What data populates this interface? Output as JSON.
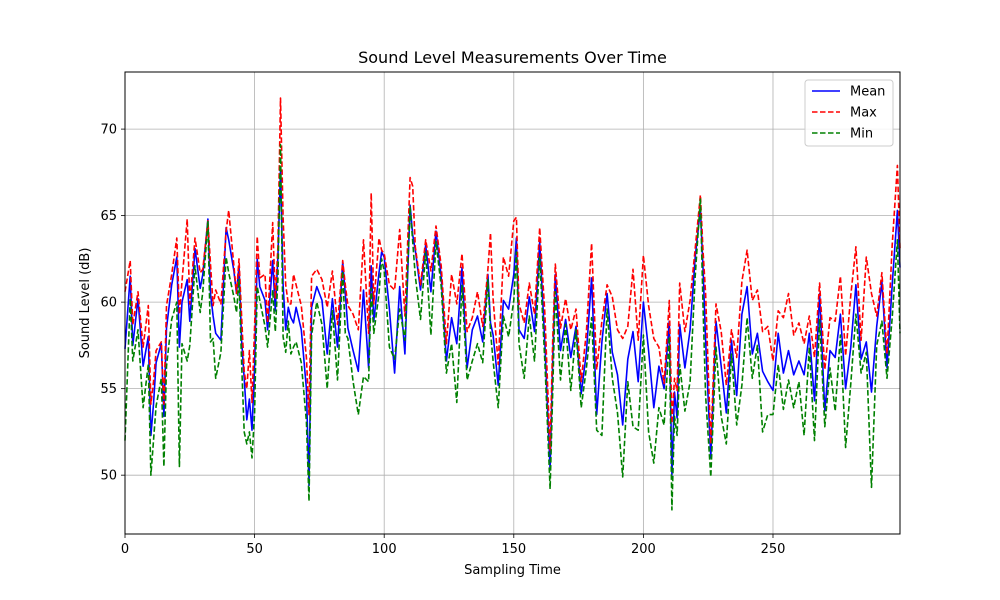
{
  "chart_data": {
    "type": "line",
    "title": "Sound Level Measurements Over Time",
    "xlabel": "Sampling Time",
    "ylabel": "Sound Level (dB)",
    "xlim": [
      0,
      299
    ],
    "ylim": [
      46.6,
      73.3
    ],
    "xticks": [
      0,
      50,
      100,
      150,
      200,
      250
    ],
    "yticks": [
      50,
      55,
      60,
      65,
      70
    ],
    "grid": true,
    "legend_position": "top-right",
    "x": [
      0,
      2,
      3,
      5,
      7,
      9,
      10,
      11,
      12,
      14,
      15,
      16,
      18,
      20,
      21,
      22,
      24,
      25,
      27,
      29,
      30,
      32,
      33,
      34,
      35,
      37,
      39,
      40,
      42,
      43,
      44,
      45,
      46,
      47,
      48,
      49,
      50,
      51,
      52,
      54,
      55,
      57,
      58,
      59,
      60,
      61,
      62,
      63,
      64,
      65,
      66,
      68,
      70,
      71,
      72,
      74,
      76,
      78,
      80,
      82,
      84,
      85,
      86,
      88,
      90,
      92,
      94,
      95,
      96,
      98,
      99,
      100,
      102,
      104,
      106,
      108,
      110,
      111,
      112,
      114,
      116,
      118,
      120,
      122,
      124,
      126,
      128,
      130,
      132,
      134,
      136,
      138,
      140,
      141,
      142,
      144,
      146,
      148,
      150,
      151,
      152,
      154,
      156,
      158,
      160,
      162,
      164,
      165,
      166,
      168,
      170,
      172,
      174,
      176,
      178,
      180,
      182,
      184,
      186,
      188,
      190,
      192,
      194,
      196,
      198,
      200,
      202,
      204,
      206,
      208,
      210,
      211,
      212,
      213,
      214,
      216,
      218,
      220,
      222,
      223,
      224,
      226,
      228,
      230,
      232,
      234,
      236,
      238,
      240,
      242,
      244,
      246,
      248,
      250,
      252,
      254,
      256,
      258,
      260,
      262,
      264,
      266,
      268,
      270,
      272,
      274,
      276,
      278,
      280,
      282,
      284,
      286,
      288,
      290,
      292,
      294,
      296,
      298,
      299
    ],
    "series": [
      {
        "name": "Mean",
        "color": "#0000ff",
        "dash": "solid",
        "values": [
          57.3,
          61.5,
          57.5,
          60.2,
          56.3,
          58.0,
          52.3,
          54.1,
          56.5,
          57.6,
          53.4,
          58.5,
          61.0,
          62.6,
          57.4,
          60.0,
          61.3,
          58.9,
          63.1,
          60.8,
          61.6,
          64.8,
          60.5,
          59.2,
          58.2,
          57.8,
          64.3,
          63.6,
          61.8,
          60.5,
          62.1,
          57.8,
          55.6,
          53.2,
          54.4,
          52.6,
          56.3,
          62.5,
          60.9,
          60.1,
          58.4,
          62.4,
          59.5,
          62.6,
          67.7,
          61.0,
          58.4,
          59.7,
          59.1,
          58.8,
          59.7,
          58.4,
          55.0,
          49.4,
          59.7,
          60.9,
          60.1,
          57.0,
          60.2,
          57.4,
          62.3,
          60.5,
          58.5,
          57.2,
          56.0,
          60.7,
          56.2,
          62.1,
          58.9,
          61.7,
          62.9,
          62.6,
          59.6,
          55.9,
          60.9,
          57.0,
          65.6,
          63.9,
          63.0,
          60.7,
          63.3,
          60.6,
          64.1,
          61.5,
          56.6,
          59.1,
          57.6,
          62.0,
          56.2,
          58.4,
          59.2,
          57.7,
          61.6,
          58.8,
          58.1,
          55.2,
          60.1,
          59.6,
          61.6,
          63.7,
          58.4,
          57.9,
          60.3,
          58.3,
          63.5,
          57.6,
          50.3,
          56.6,
          61.6,
          57.2,
          59.0,
          56.8,
          58.6,
          54.7,
          57.1,
          61.4,
          53.5,
          57.7,
          60.5,
          57.1,
          55.8,
          52.9,
          56.7,
          58.3,
          55.4,
          60.0,
          57.2,
          53.9,
          56.3,
          55.0,
          58.9,
          50.0,
          54.8,
          53.3,
          58.7,
          56.2,
          58.4,
          62.6,
          65.4,
          62.0,
          57.8,
          51.0,
          58.9,
          56.3,
          53.6,
          57.8,
          54.6,
          59.3,
          60.9,
          57.0,
          58.2,
          56.0,
          55.4,
          54.9,
          58.2,
          55.9,
          57.2,
          55.8,
          56.6,
          55.8,
          58.2,
          54.3,
          60.5,
          53.7,
          57.2,
          56.8,
          59.3,
          55.0,
          57.4,
          61.0,
          56.7,
          57.7,
          54.8,
          58.6,
          61.2,
          56.2,
          61.0,
          65.3,
          62.0
        ]
      },
      {
        "name": "Max",
        "color": "#ff0000",
        "dash": "dashed",
        "values": [
          60.6,
          62.4,
          58.7,
          60.6,
          57.4,
          59.8,
          54.1,
          55.4,
          57.2,
          57.7,
          54.1,
          59.8,
          61.6,
          63.7,
          59.3,
          61.2,
          64.8,
          59.9,
          63.7,
          61.7,
          61.9,
          64.7,
          62.2,
          59.8,
          60.7,
          59.9,
          64.1,
          65.3,
          62.1,
          60.5,
          62.5,
          59.2,
          56.0,
          55.0,
          57.2,
          54.2,
          58.6,
          63.8,
          61.4,
          61.6,
          58.8,
          64.6,
          60.2,
          63.2,
          71.8,
          64.9,
          61.0,
          59.9,
          59.9,
          61.6,
          61.0,
          59.8,
          56.8,
          53.5,
          61.5,
          61.9,
          61.3,
          59.7,
          61.8,
          58.7,
          62.4,
          61.0,
          59.8,
          59.3,
          58.4,
          63.6,
          58.2,
          66.3,
          59.9,
          63.7,
          63.0,
          62.8,
          61.0,
          60.7,
          64.2,
          59.2,
          67.2,
          66.7,
          63.2,
          61.0,
          63.6,
          61.8,
          64.4,
          62.1,
          57.6,
          61.6,
          59.9,
          62.8,
          58.3,
          59.1,
          60.6,
          58.6,
          61.9,
          64.0,
          60.2,
          56.4,
          62.6,
          61.5,
          64.7,
          64.9,
          59.9,
          58.8,
          61.1,
          59.3,
          64.3,
          59.3,
          51.4,
          57.8,
          62.2,
          58.5,
          60.2,
          58.4,
          59.6,
          55.4,
          58.3,
          63.4,
          56.1,
          58.9,
          61.0,
          60.3,
          58.4,
          57.9,
          58.6,
          61.9,
          57.8,
          62.7,
          59.8,
          57.9,
          57.4,
          55.3,
          60.1,
          53.0,
          55.6,
          54.9,
          61.1,
          58.3,
          60.1,
          63.1,
          66.2,
          63.0,
          60.5,
          51.8,
          59.9,
          58.3,
          55.2,
          58.4,
          56.8,
          61.2,
          63.0,
          60.1,
          60.7,
          58.3,
          58.6,
          56.6,
          59.5,
          59.1,
          60.5,
          58.1,
          58.8,
          57.6,
          59.2,
          56.8,
          61.1,
          56.1,
          59.1,
          58.9,
          61.5,
          56.9,
          60.4,
          63.2,
          57.8,
          62.6,
          60.5,
          59.2,
          61.7,
          57.0,
          63.3,
          67.9,
          63.1
        ]
      },
      {
        "name": "Min",
        "color": "#008000",
        "dash": "dashed",
        "values": [
          52.0,
          60.2,
          56.6,
          58.4,
          53.9,
          56.4,
          50.0,
          52.0,
          54.0,
          55.6,
          50.5,
          56.3,
          59.0,
          60.0,
          50.5,
          57.6,
          56.6,
          57.5,
          62.1,
          59.4,
          60.6,
          64.7,
          57.7,
          57.9,
          55.6,
          57.1,
          62.6,
          61.7,
          60.3,
          59.4,
          61.3,
          56.5,
          52.5,
          51.8,
          52.5,
          51.0,
          53.6,
          60.9,
          60.1,
          58.6,
          57.4,
          60.7,
          58.3,
          61.3,
          69.1,
          58.0,
          57.1,
          58.9,
          57.0,
          57.4,
          57.7,
          56.5,
          53.1,
          48.5,
          58.1,
          60.0,
          58.7,
          55.0,
          59.5,
          55.5,
          61.8,
          58.2,
          57.9,
          55.4,
          53.5,
          55.7,
          55.4,
          60.8,
          58.2,
          60.5,
          62.5,
          61.8,
          57.4,
          56.7,
          59.6,
          57.8,
          65.5,
          63.5,
          61.5,
          59.0,
          62.9,
          58.1,
          63.5,
          60.9,
          55.9,
          57.6,
          54.2,
          61.0,
          55.5,
          56.6,
          57.6,
          56.5,
          61.3,
          58.3,
          56.6,
          53.9,
          59.2,
          58.0,
          60.1,
          62.9,
          57.6,
          55.6,
          59.2,
          56.6,
          62.6,
          56.5,
          49.2,
          54.8,
          60.6,
          55.5,
          58.7,
          54.9,
          58.4,
          53.9,
          56.2,
          59.1,
          52.6,
          52.3,
          59.6,
          55.6,
          53.6,
          49.9,
          55.4,
          52.8,
          52.6,
          58.1,
          52.5,
          50.7,
          53.9,
          52.9,
          58.0,
          48.0,
          53.4,
          52.3,
          56.4,
          53.7,
          55.4,
          61.5,
          66.0,
          59.8,
          54.6,
          49.9,
          57.4,
          53.4,
          51.8,
          57.0,
          52.9,
          55.2,
          59.1,
          55.6,
          57.5,
          52.5,
          53.5,
          53.5,
          56.4,
          53.8,
          55.5,
          53.9,
          55.4,
          52.3,
          57.4,
          52.0,
          59.0,
          52.8,
          56.2,
          53.7,
          58.1,
          51.6,
          55.3,
          59.3,
          55.9,
          57.1,
          49.3,
          57.5,
          58.9,
          55.6,
          59.1,
          63.6,
          58.2
        ]
      }
    ]
  }
}
